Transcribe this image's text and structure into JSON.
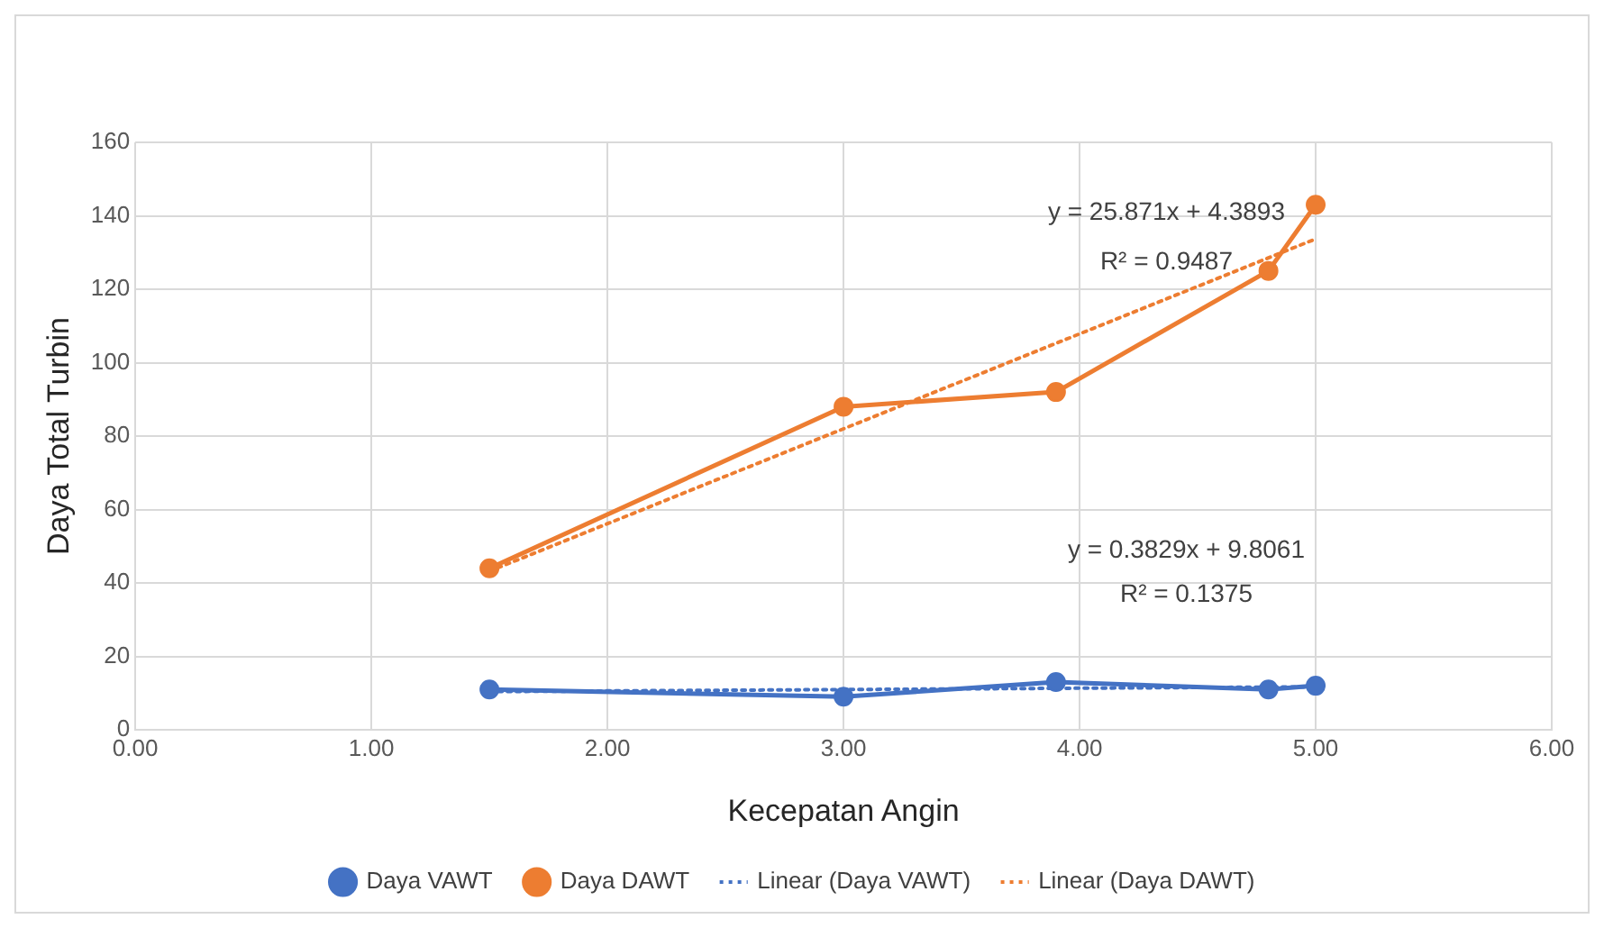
{
  "chart_data": {
    "type": "line",
    "xlabel": "Kecepatan Angin",
    "ylabel": "Daya Total Turbin",
    "xlim": [
      0,
      6
    ],
    "xticks": [
      {
        "value": 0,
        "label": "0.00"
      },
      {
        "value": 1,
        "label": "1.00"
      },
      {
        "value": 2,
        "label": "2.00"
      },
      {
        "value": 3,
        "label": "3.00"
      },
      {
        "value": 4,
        "label": "4.00"
      },
      {
        "value": 5,
        "label": "5.00"
      },
      {
        "value": 6,
        "label": "6.00"
      }
    ],
    "ylim": [
      0,
      160
    ],
    "yticks": [
      0,
      20,
      40,
      60,
      80,
      100,
      120,
      140,
      160
    ],
    "grid": true,
    "legend": "bottom",
    "marker": "circle",
    "series": [
      {
        "name": "Daya VAWT",
        "color": "#4472c4",
        "x": [
          1.5,
          3.0,
          3.9,
          4.8,
          5.0
        ],
        "values": [
          11,
          9,
          13,
          11,
          12
        ]
      },
      {
        "name": "Daya DAWT",
        "color": "#ed7d31",
        "x": [
          1.5,
          3.0,
          3.9,
          4.8,
          5.0
        ],
        "values": [
          44,
          88,
          92,
          125,
          143
        ]
      },
      {
        "name": "Linear (Daya VAWT)",
        "color": "#4472c4",
        "x": [
          1.5,
          5.0
        ],
        "values": [
          10.4,
          11.7
        ],
        "line_style": "dotted",
        "marker": "none"
      },
      {
        "name": "Linear (Daya DAWT)",
        "color": "#ed7d31",
        "x": [
          1.5,
          5.0
        ],
        "values": [
          43.2,
          133.7
        ],
        "line_style": "dotted",
        "marker": "none"
      }
    ],
    "annotations": [
      "y = 25.871x + 4.3893",
      "R² = 0.9487",
      "y = 0.3829x + 9.8061",
      "R² = 0.1375"
    ]
  }
}
